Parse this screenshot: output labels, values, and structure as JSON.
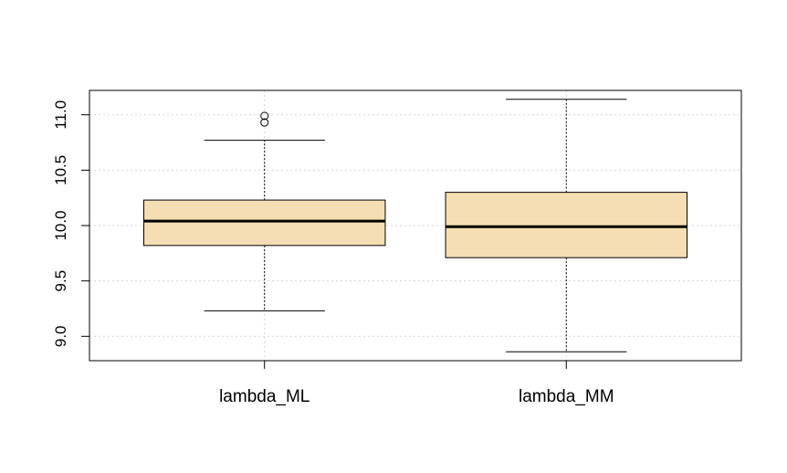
{
  "chart_data": {
    "type": "boxplot",
    "title": "",
    "xlabel": "",
    "ylabel": "",
    "categories": [
      "lambda_ML",
      "lambda_MM"
    ],
    "ylim": [
      8.78,
      11.22
    ],
    "yticks": [
      "9.0",
      "9.5",
      "10.0",
      "10.5",
      "11.0"
    ],
    "grid": true,
    "box_fill": "#f5deb3",
    "grid_color": "#d3d3d3",
    "boxes": [
      {
        "name": "lambda_ML",
        "whisker_low": 9.23,
        "q1": 9.82,
        "median": 10.04,
        "q3": 10.23,
        "whisker_high": 10.77,
        "outliers": [
          10.93,
          10.99
        ]
      },
      {
        "name": "lambda_MM",
        "whisker_low": 8.86,
        "q1": 9.71,
        "median": 9.99,
        "q3": 10.3,
        "whisker_high": 11.14,
        "outliers": []
      }
    ]
  }
}
